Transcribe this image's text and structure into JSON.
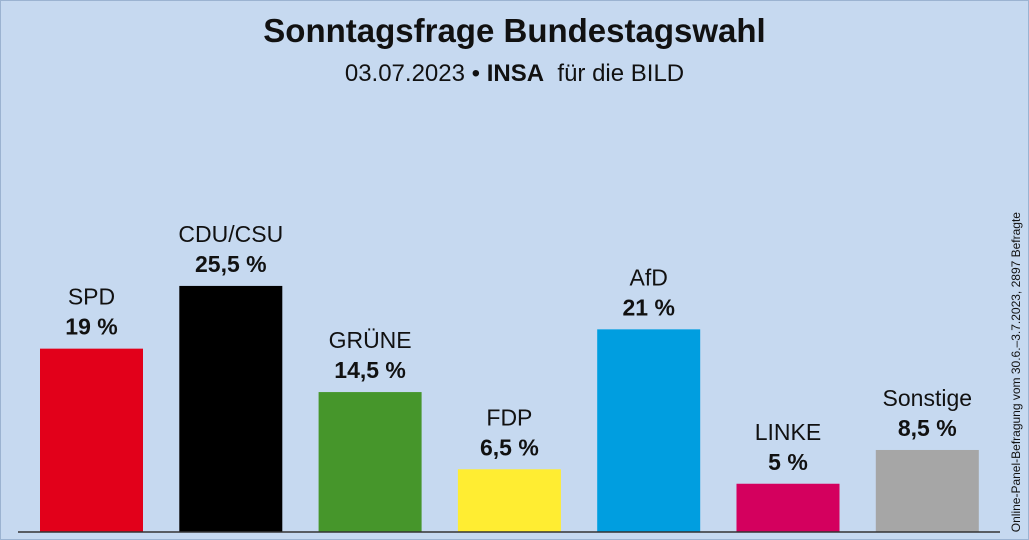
{
  "chart_data": {
    "type": "bar",
    "title": "Sonntagsfrage Bundestagswahl",
    "subtitle": {
      "date": "03.07.2023",
      "separator": "•",
      "institute": "INSA",
      "client": "für die BILD"
    },
    "note": "Online-Panel-Befragung vom 30.6.–3.7.2023, 2897 Befragte",
    "categories": [
      "SPD",
      "CDU/CSU",
      "GRÜNE",
      "FDP",
      "AfD",
      "LINKE",
      "Sonstige"
    ],
    "values": [
      19,
      25.5,
      14.5,
      6.5,
      21,
      5,
      8.5
    ],
    "value_labels": [
      "19 %",
      "25,5 %",
      "14,5 %",
      "6,5 %",
      "21 %",
      "5 %",
      "8,5 %"
    ],
    "colors": [
      "#e2001a",
      "#000000",
      "#46962b",
      "#ffed32",
      "#009ee0",
      "#d4005e",
      "#a6a6a6"
    ],
    "ylim": [
      0,
      27
    ],
    "xlabel": "",
    "ylabel": "",
    "grid": false
  }
}
